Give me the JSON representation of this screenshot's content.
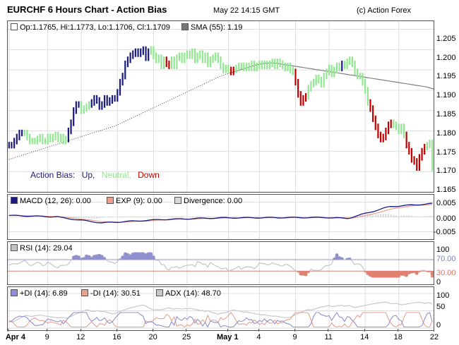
{
  "header": {
    "title": "EURCHF 6 Hours Chart - Action Bias",
    "timestamp": "May 22 14:15 GMT",
    "credit": "(c) Action Forex"
  },
  "colors": {
    "up": "#1a1a80",
    "neutral": "#90e890",
    "down": "#c00000",
    "sma": "#808080",
    "macd": "#1a1a80",
    "exp": "#e8a090",
    "divergence": "#d8d8d8",
    "rsi": "#c0c0c0",
    "rsi_fill": "#9090d0",
    "plus_di": "#9090d0",
    "minus_di": "#e8a090",
    "adx": "#c8c8c8",
    "grid": "#dddddd"
  },
  "x_axis": {
    "labels": [
      {
        "text": "Apr 4",
        "bold": true,
        "bar": 0
      },
      {
        "text": "9",
        "bar": 15
      },
      {
        "text": "12",
        "bar": 28
      },
      {
        "text": "16",
        "bar": 42
      },
      {
        "text": "20",
        "bar": 56
      },
      {
        "text": "25",
        "bar": 69
      },
      {
        "text": "May 1",
        "bold": true,
        "bar": 85
      },
      {
        "text": "4",
        "bar": 97
      },
      {
        "text": "9",
        "bar": 111
      },
      {
        "text": "11",
        "bar": 124
      },
      {
        "text": "14",
        "bar": 138
      },
      {
        "text": "18",
        "bar": 151
      },
      {
        "text": "22",
        "bar": 165
      }
    ]
  },
  "main": {
    "ohlc_text": "Op:1.1765, Hi:1.1773, Lo:1.1706, Cl:1.1709",
    "sma_text": "SMA (55): 1.19",
    "bias_label": "Action Bias:",
    "bias_up": "Up,",
    "bias_neutral": "Neutral,",
    "bias_down": "Down",
    "y_ticks": [
      "1.205",
      "1.200",
      "1.195",
      "1.190",
      "1.185",
      "1.180",
      "1.175",
      "1.170",
      "1.165"
    ]
  },
  "macd_panel": {
    "macd_label": "MACD (12, 26): 0.00",
    "exp_label": "EXP (9): 0.00",
    "div_label": "Divergence: 0.00",
    "y_ticks": [
      "0.005",
      "0.000",
      "-0.005"
    ]
  },
  "rsi_panel": {
    "rsi_label": "RSI (14): 29.04",
    "y_ticks": [
      "100",
      "70.00",
      "30.00",
      "0"
    ]
  },
  "dmi_panel": {
    "plus_label": "+DI (14): 6.89",
    "minus_label": "-DI (14): 30.51",
    "adx_label": "ADX (14): 48.70",
    "y_ticks": [
      "100",
      "50",
      "0"
    ]
  },
  "chart_data": {
    "type": "candlestick",
    "title": "EURCHF 6 Hours Chart - Action Bias",
    "ylim": [
      1.165,
      1.207
    ],
    "close": [
      1.1765,
      1.1765,
      1.1775,
      1.1785,
      1.1795,
      1.1795,
      1.1795,
      1.1785,
      1.1775,
      1.1775,
      1.1775,
      1.178,
      1.1785,
      1.1775,
      1.1775,
      1.1785,
      1.178,
      1.1785,
      1.179,
      1.178,
      1.1785,
      1.1775,
      1.178,
      1.18,
      1.182,
      1.185,
      1.1865,
      1.1865,
      1.185,
      1.1855,
      1.186,
      1.1865,
      1.187,
      1.188,
      1.1875,
      1.186,
      1.1865,
      1.188,
      1.187,
      1.1875,
      1.188,
      1.188,
      1.1895,
      1.192,
      1.1935,
      1.1965,
      1.1975,
      1.1985,
      1.199,
      1.1995,
      1.199,
      1.1995,
      1.2,
      1.198,
      1.1995,
      1.2,
      1.1985,
      1.1975,
      1.198,
      1.196,
      1.1975,
      1.1965,
      1.196,
      1.1975,
      1.196,
      1.198,
      1.1985,
      1.1975,
      1.1985,
      1.199,
      1.1985,
      1.1995,
      1.1975,
      1.1985,
      1.199,
      1.1975,
      1.1985,
      1.1965,
      1.1975,
      1.198,
      1.1985,
      1.1975,
      1.196,
      1.195,
      1.1955,
      1.195,
      1.1945,
      1.195,
      1.1955,
      1.196,
      1.196,
      1.1955,
      1.196,
      1.1955,
      1.1965,
      1.1955,
      1.196,
      1.1965,
      1.196,
      1.1965,
      1.196,
      1.1965,
      1.197,
      1.196,
      1.197,
      1.1965,
      1.196,
      1.1955,
      1.196,
      1.195,
      1.1945,
      1.192,
      1.189,
      1.187,
      1.188,
      1.1885,
      1.1905,
      1.1915,
      1.192,
      1.193,
      1.1925,
      1.1915,
      1.1935,
      1.1945,
      1.1955,
      1.194,
      1.195,
      1.196,
      1.1955,
      1.1965,
      1.196,
      1.197,
      1.1975,
      1.1965,
      1.1945,
      1.1935,
      1.1935,
      1.192,
      1.19,
      1.187,
      1.1855,
      1.183,
      1.181,
      1.179,
      1.178,
      1.1785,
      1.18,
      1.1815,
      1.182,
      1.1815,
      1.181,
      1.18,
      1.181,
      1.179,
      1.1765,
      1.175,
      1.173,
      1.1725,
      1.171,
      1.1735,
      1.175,
      1.176,
      1.1765,
      1.177,
      1.1709
    ],
    "bias_key": "UUUUUUNNNNNNNNNNNNNNNNNUUUUUNNNNUUUUUUUUUUUUUUUUUUUUUUUNNNNNNDDNNNNNNNNNNNNNNNNNNNNNNNDDNNNNNNNNNNNNNNNNNNNNNNNDDDDDNNNNNNNNNNNNNUNNNNNNNNNNDDDDDDDDDNNNNNDDDDDDDDNNNNND",
    "series": [
      {
        "name": "SMA (55)",
        "values": [
          1.173,
          1.1732,
          1.1734,
          1.1736,
          1.1738,
          1.174,
          1.1742,
          1.1744,
          1.1746,
          1.1748,
          1.175,
          1.1752,
          1.1754,
          1.1756,
          1.1758,
          1.176,
          1.1762,
          1.1764,
          1.1766,
          1.1768,
          1.177,
          1.1772,
          1.1774,
          1.1776,
          1.1778,
          1.178,
          1.1782,
          1.1784,
          1.1786,
          1.1788,
          1.179,
          1.1792,
          1.1794,
          1.1796,
          1.1798,
          1.18,
          1.1802,
          1.1804,
          1.1806,
          1.1808,
          1.181,
          1.1812,
          1.1815,
          1.1818,
          1.1821,
          1.1824,
          1.1827,
          1.183,
          1.1833,
          1.1836,
          1.1839,
          1.1842,
          1.1845,
          1.1848,
          1.1851,
          1.1854,
          1.1857,
          1.186,
          1.1863,
          1.1866,
          1.1869,
          1.1872,
          1.1875,
          1.1878,
          1.1881,
          1.1884,
          1.1887,
          1.189,
          1.1893,
          1.1896,
          1.1899,
          1.1902,
          1.1905,
          1.1908,
          1.1911,
          1.1914,
          1.1917,
          1.192,
          1.1923,
          1.1926,
          1.1929,
          1.1932,
          1.1935,
          1.1937,
          1.1939,
          1.1941,
          1.1943,
          1.1945,
          1.1947,
          1.1949,
          1.1951,
          1.1953,
          1.1955,
          1.1957,
          1.1959,
          1.1961,
          1.1963,
          1.1964,
          1.1965,
          1.1966,
          1.1967,
          1.1967,
          1.1967,
          1.1967,
          1.1966,
          1.1965,
          1.1964,
          1.1963,
          1.1962,
          1.1961,
          1.196,
          1.1959,
          1.1958,
          1.1957,
          1.1956,
          1.1955,
          1.1954,
          1.1953,
          1.1952,
          1.1951,
          1.195,
          1.1949,
          1.1948,
          1.1947,
          1.1946,
          1.1945,
          1.1944,
          1.1943,
          1.1942,
          1.1941,
          1.194,
          1.1939,
          1.1938,
          1.1937,
          1.1936,
          1.1935,
          1.1934,
          1.1933,
          1.1932,
          1.1931,
          1.193,
          1.1929,
          1.1928,
          1.1927,
          1.1926,
          1.1925,
          1.1924,
          1.1923,
          1.1922,
          1.1921,
          1.192,
          1.1919,
          1.1918,
          1.1917,
          1.1916,
          1.1915,
          1.1914,
          1.1913,
          1.1912,
          1.1911,
          1.191,
          1.1909,
          1.1908,
          1.1906,
          1.1904,
          1.1902,
          1.19,
          1.1898,
          1.1896,
          1.1894,
          1.1892,
          1.189,
          1.1888
        ]
      }
    ]
  }
}
